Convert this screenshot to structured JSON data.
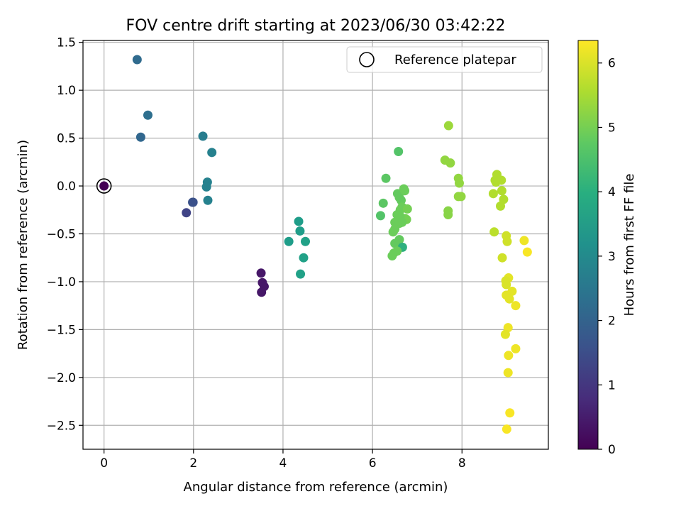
{
  "chart_data": {
    "type": "scatter",
    "title": "FOV centre drift starting at 2023/06/30 03:42:22",
    "xlabel": "Angular distance from reference (arcmin)",
    "ylabel": "Rotation from reference (arcmin)",
    "xlim": [
      -0.47,
      9.93
    ],
    "ylim": [
      -2.75,
      1.52
    ],
    "xticks": [
      0,
      2,
      4,
      6,
      8
    ],
    "yticks": [
      -2.5,
      -2.0,
      -1.5,
      -1.0,
      -0.5,
      0.0,
      0.5,
      1.0,
      1.5
    ],
    "xtick_labels": [
      "0",
      "2",
      "4",
      "6",
      "8"
    ],
    "ytick_labels": [
      "−2.5",
      "−2.0",
      "−1.5",
      "−1.0",
      "−0.5",
      "0.0",
      "0.5",
      "1.0",
      "1.5"
    ],
    "grid": true,
    "legend": {
      "label": "Reference platepar",
      "position": "top-right"
    },
    "reference_point": {
      "x": 0,
      "y": 0
    },
    "colorbar": {
      "label": "Hours from first FF file",
      "range": [
        0,
        6.35
      ],
      "ticks": [
        0,
        1,
        2,
        3,
        4,
        5,
        6
      ],
      "tick_labels": [
        "0",
        "1",
        "2",
        "3",
        "4",
        "5",
        "6"
      ],
      "colormap": "viridis"
    },
    "points": [
      {
        "x": 0.0,
        "y": 0.0,
        "c": 0.0
      },
      {
        "x": 1.84,
        "y": -0.28,
        "c": 1.3
      },
      {
        "x": 1.98,
        "y": -0.17,
        "c": 1.6
      },
      {
        "x": 1.99,
        "y": -0.17,
        "c": 1.6
      },
      {
        "x": 0.82,
        "y": 0.51,
        "c": 2.1
      },
      {
        "x": 0.74,
        "y": 1.32,
        "c": 2.2
      },
      {
        "x": 0.98,
        "y": 0.74,
        "c": 2.3
      },
      {
        "x": 2.21,
        "y": 0.52,
        "c": 2.7
      },
      {
        "x": 2.41,
        "y": 0.35,
        "c": 2.8
      },
      {
        "x": 2.31,
        "y": 0.04,
        "c": 2.8
      },
      {
        "x": 2.29,
        "y": -0.01,
        "c": 2.8
      },
      {
        "x": 2.32,
        "y": -0.15,
        "c": 2.8
      },
      {
        "x": 3.51,
        "y": -0.91,
        "c": 0.4
      },
      {
        "x": 3.54,
        "y": -1.01,
        "c": 0.4
      },
      {
        "x": 3.58,
        "y": -1.05,
        "c": 0.4
      },
      {
        "x": 3.52,
        "y": -1.11,
        "c": 0.4
      },
      {
        "x": 4.13,
        "y": -0.58,
        "c": 3.5
      },
      {
        "x": 4.35,
        "y": -0.37,
        "c": 3.5
      },
      {
        "x": 4.38,
        "y": -0.47,
        "c": 3.5
      },
      {
        "x": 4.5,
        "y": -0.58,
        "c": 3.6
      },
      {
        "x": 4.46,
        "y": -0.75,
        "c": 3.6
      },
      {
        "x": 4.39,
        "y": -0.92,
        "c": 3.6
      },
      {
        "x": 6.58,
        "y": 0.36,
        "c": 4.6
      },
      {
        "x": 6.3,
        "y": 0.08,
        "c": 4.7
      },
      {
        "x": 6.24,
        "y": -0.18,
        "c": 4.7
      },
      {
        "x": 6.18,
        "y": -0.31,
        "c": 4.6
      },
      {
        "x": 6.56,
        "y": -0.08,
        "c": 4.8
      },
      {
        "x": 6.6,
        "y": -0.12,
        "c": 4.8
      },
      {
        "x": 6.64,
        "y": -0.15,
        "c": 4.8
      },
      {
        "x": 6.7,
        "y": -0.03,
        "c": 4.9
      },
      {
        "x": 6.72,
        "y": -0.05,
        "c": 4.9
      },
      {
        "x": 6.66,
        "y": -0.22,
        "c": 4.9
      },
      {
        "x": 6.62,
        "y": -0.25,
        "c": 4.9
      },
      {
        "x": 6.78,
        "y": -0.24,
        "c": 5.0
      },
      {
        "x": 6.73,
        "y": -0.34,
        "c": 5.0
      },
      {
        "x": 6.76,
        "y": -0.35,
        "c": 5.0
      },
      {
        "x": 6.55,
        "y": -0.3,
        "c": 4.9
      },
      {
        "x": 6.62,
        "y": -0.32,
        "c": 4.9
      },
      {
        "x": 6.5,
        "y": -0.38,
        "c": 4.9
      },
      {
        "x": 6.6,
        "y": -0.39,
        "c": 4.9
      },
      {
        "x": 6.66,
        "y": -0.38,
        "c": 4.9
      },
      {
        "x": 6.46,
        "y": -0.48,
        "c": 4.9
      },
      {
        "x": 6.5,
        "y": -0.45,
        "c": 4.9
      },
      {
        "x": 6.6,
        "y": -0.56,
        "c": 4.8
      },
      {
        "x": 6.5,
        "y": -0.6,
        "c": 4.8
      },
      {
        "x": 6.58,
        "y": -0.62,
        "c": 4.8
      },
      {
        "x": 6.67,
        "y": -0.64,
        "c": 4.0
      },
      {
        "x": 6.48,
        "y": -0.7,
        "c": 4.9
      },
      {
        "x": 6.55,
        "y": -0.68,
        "c": 4.9
      },
      {
        "x": 6.44,
        "y": -0.73,
        "c": 4.9
      },
      {
        "x": 7.7,
        "y": 0.63,
        "c": 5.4
      },
      {
        "x": 7.62,
        "y": 0.27,
        "c": 5.3
      },
      {
        "x": 7.74,
        "y": 0.24,
        "c": 5.3
      },
      {
        "x": 7.92,
        "y": 0.08,
        "c": 5.3
      },
      {
        "x": 7.94,
        "y": 0.03,
        "c": 5.3
      },
      {
        "x": 7.92,
        "y": -0.11,
        "c": 5.3
      },
      {
        "x": 7.98,
        "y": -0.11,
        "c": 5.3
      },
      {
        "x": 7.69,
        "y": -0.26,
        "c": 5.2
      },
      {
        "x": 7.69,
        "y": -0.3,
        "c": 5.2
      },
      {
        "x": 8.78,
        "y": 0.12,
        "c": 5.6
      },
      {
        "x": 8.74,
        "y": 0.06,
        "c": 5.6
      },
      {
        "x": 8.76,
        "y": 0.04,
        "c": 5.6
      },
      {
        "x": 8.88,
        "y": 0.06,
        "c": 5.6
      },
      {
        "x": 8.7,
        "y": -0.08,
        "c": 5.6
      },
      {
        "x": 8.89,
        "y": -0.05,
        "c": 5.6
      },
      {
        "x": 8.93,
        "y": -0.14,
        "c": 5.6
      },
      {
        "x": 8.86,
        "y": -0.21,
        "c": 5.6
      },
      {
        "x": 8.72,
        "y": -0.48,
        "c": 5.7
      },
      {
        "x": 8.99,
        "y": -0.52,
        "c": 5.9
      },
      {
        "x": 9.01,
        "y": -0.58,
        "c": 5.9
      },
      {
        "x": 9.39,
        "y": -0.57,
        "c": 6.2
      },
      {
        "x": 9.46,
        "y": -0.69,
        "c": 6.3
      },
      {
        "x": 8.9,
        "y": -0.75,
        "c": 5.9
      },
      {
        "x": 9.04,
        "y": -0.96,
        "c": 6.1
      },
      {
        "x": 8.98,
        "y": -0.99,
        "c": 6.0
      },
      {
        "x": 8.99,
        "y": -1.03,
        "c": 6.0
      },
      {
        "x": 9.12,
        "y": -1.1,
        "c": 6.1
      },
      {
        "x": 8.99,
        "y": -1.14,
        "c": 6.1
      },
      {
        "x": 9.06,
        "y": -1.18,
        "c": 6.1
      },
      {
        "x": 9.2,
        "y": -1.25,
        "c": 6.2
      },
      {
        "x": 9.03,
        "y": -1.48,
        "c": 6.2
      },
      {
        "x": 8.97,
        "y": -1.55,
        "c": 6.1
      },
      {
        "x": 9.2,
        "y": -1.7,
        "c": 6.2
      },
      {
        "x": 9.04,
        "y": -1.77,
        "c": 6.2
      },
      {
        "x": 9.03,
        "y": -1.95,
        "c": 6.2
      },
      {
        "x": 9.07,
        "y": -2.37,
        "c": 6.3
      },
      {
        "x": 9.0,
        "y": -2.54,
        "c": 6.3
      }
    ]
  }
}
